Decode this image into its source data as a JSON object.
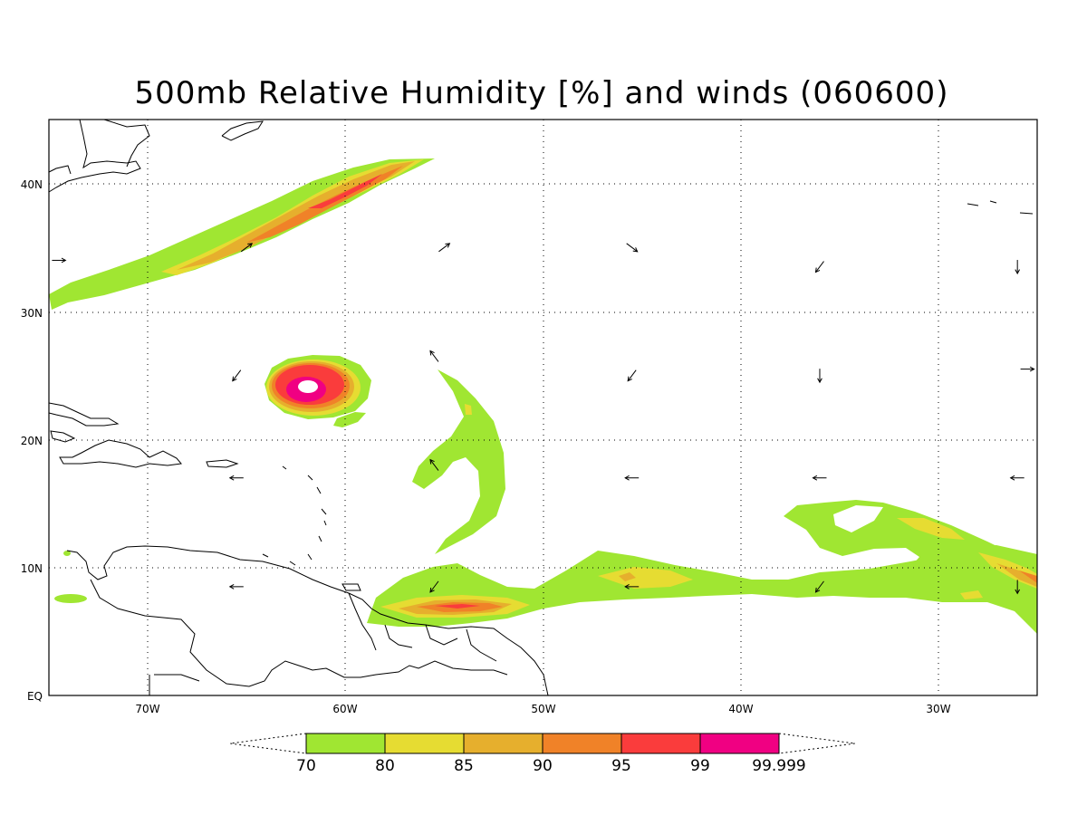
{
  "title": "500mb Relative Humidity [%] and winds (060600)",
  "map": {
    "lon_range": [
      -75,
      -25
    ],
    "lat_range": [
      0,
      45
    ],
    "lon_ticks": [
      {
        "value": -70,
        "label": "70W"
      },
      {
        "value": -60,
        "label": "60W"
      },
      {
        "value": -50,
        "label": "50W"
      },
      {
        "value": -40,
        "label": "40W"
      },
      {
        "value": -30,
        "label": "30W"
      }
    ],
    "lat_ticks": [
      {
        "value": 0,
        "label": "EQ"
      },
      {
        "value": 10,
        "label": "10N"
      },
      {
        "value": 20,
        "label": "20N"
      },
      {
        "value": 30,
        "label": "30N"
      },
      {
        "value": 40,
        "label": "40N"
      }
    ],
    "gridlines": "dotted"
  },
  "colorbar": {
    "levels": [
      "70",
      "80",
      "85",
      "90",
      "95",
      "99",
      "99.999"
    ],
    "colors": [
      "#a0e632",
      "#e6dc32",
      "#e6af2d",
      "#f08228",
      "#fa3c3c",
      "#f00082"
    ]
  },
  "humidity_regions": [
    {
      "name": "northern-band",
      "level": 70
    },
    {
      "name": "northern-band-core",
      "level": 85
    },
    {
      "name": "tropical-cyclone",
      "level": 99.999
    },
    {
      "name": "central-arc",
      "level": 70
    },
    {
      "name": "itcz-band",
      "level": 95
    },
    {
      "name": "eastern-band",
      "level": 90
    }
  ],
  "wind_vectors": [
    {
      "lon": -74.5,
      "lat": 34,
      "dir": "east"
    },
    {
      "lon": -65,
      "lat": 35,
      "dir": "northeast"
    },
    {
      "lon": -55,
      "lat": 35,
      "dir": "northeast"
    },
    {
      "lon": -45.5,
      "lat": 35,
      "dir": "southeast"
    },
    {
      "lon": -36,
      "lat": 33.5,
      "dir": "southwest"
    },
    {
      "lon": -26,
      "lat": 33.5,
      "dir": "south"
    },
    {
      "lon": -65.5,
      "lat": 25,
      "dir": "southwest"
    },
    {
      "lon": -55.5,
      "lat": 26.5,
      "dir": "northwest"
    },
    {
      "lon": -45.5,
      "lat": 25,
      "dir": "southwest"
    },
    {
      "lon": -36,
      "lat": 25,
      "dir": "south"
    },
    {
      "lon": -25.5,
      "lat": 25.5,
      "dir": "east"
    },
    {
      "lon": -65.5,
      "lat": 17,
      "dir": "west"
    },
    {
      "lon": -55.5,
      "lat": 18,
      "dir": "northwest"
    },
    {
      "lon": -45.5,
      "lat": 17,
      "dir": "west"
    },
    {
      "lon": -36,
      "lat": 17,
      "dir": "west"
    },
    {
      "lon": -26,
      "lat": 17,
      "dir": "west"
    },
    {
      "lon": -65.5,
      "lat": 8.5,
      "dir": "west"
    },
    {
      "lon": -55.5,
      "lat": 8.5,
      "dir": "southwest"
    },
    {
      "lon": -45.5,
      "lat": 8.5,
      "dir": "west"
    },
    {
      "lon": -36,
      "lat": 8.5,
      "dir": "southwest"
    },
    {
      "lon": -26,
      "lat": 8.5,
      "dir": "south"
    }
  ]
}
